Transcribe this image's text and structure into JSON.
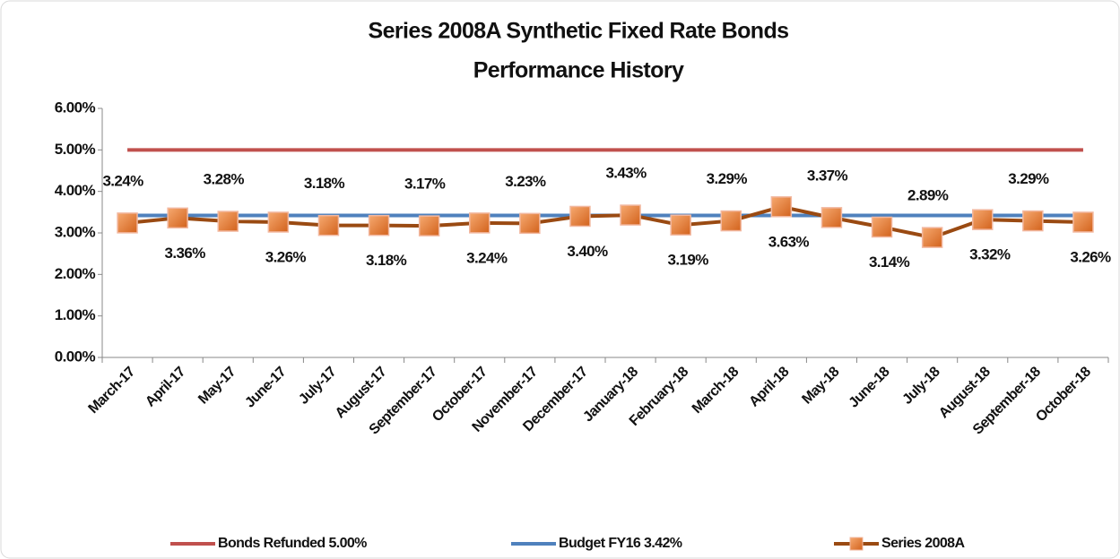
{
  "chart_data": {
    "type": "line",
    "title": [
      "Series 2008A Synthetic Fixed Rate Bonds",
      "Performance History"
    ],
    "categories": [
      "March-17",
      "April-17",
      "May-17",
      "June-17",
      "July-17",
      "August-17",
      "September-17",
      "October-17",
      "November-17",
      "December-17",
      "January-18",
      "February-18",
      "March-18",
      "April-18",
      "May-18",
      "June-18",
      "July-18",
      "August-18",
      "September-18",
      "October-18"
    ],
    "series": [
      {
        "name": "Bonds Refunded 5.00%",
        "color": "#c0504d",
        "values": [
          5,
          5,
          5,
          5,
          5,
          5,
          5,
          5,
          5,
          5,
          5,
          5,
          5,
          5,
          5,
          5,
          5,
          5,
          5,
          5
        ]
      },
      {
        "name": "Budget FY16 3.42%",
        "color": "#4f81bd",
        "values": [
          3.42,
          3.42,
          3.42,
          3.42,
          3.42,
          3.42,
          3.42,
          3.42,
          3.42,
          3.42,
          3.42,
          3.42,
          3.42,
          3.42,
          3.42,
          3.42,
          3.42,
          3.42,
          3.42,
          3.42
        ]
      },
      {
        "name": "Series 2008A",
        "color": "#9a4a12",
        "marker": "square",
        "marker_color": "#e8782e",
        "values": [
          3.24,
          3.36,
          3.28,
          3.26,
          3.18,
          3.18,
          3.17,
          3.24,
          3.23,
          3.4,
          3.43,
          3.19,
          3.29,
          3.63,
          3.37,
          3.14,
          2.89,
          3.32,
          3.29,
          3.26
        ],
        "value_labels": [
          "3.24%",
          "3.36%",
          "3.28%",
          "3.26%",
          "3.18%",
          "3.18%",
          "3.17%",
          "3.24%",
          "3.23%",
          "3.40%",
          "3.43%",
          "3.19%",
          "3.29%",
          "3.63%",
          "3.37%",
          "3.14%",
          "2.89%",
          "3.32%",
          "3.29%",
          "3.26%"
        ]
      }
    ],
    "ylim": [
      0,
      6
    ],
    "yticks": [
      {
        "value": 0,
        "label": "0.00%"
      },
      {
        "value": 1,
        "label": "1.00%"
      },
      {
        "value": 2,
        "label": "2.00%"
      },
      {
        "value": 3,
        "label": "3.00%"
      },
      {
        "value": 4,
        "label": "4.00%"
      },
      {
        "value": 5,
        "label": "5.00%"
      },
      {
        "value": 6,
        "label": "6.00%"
      }
    ],
    "legend": "bottom"
  }
}
